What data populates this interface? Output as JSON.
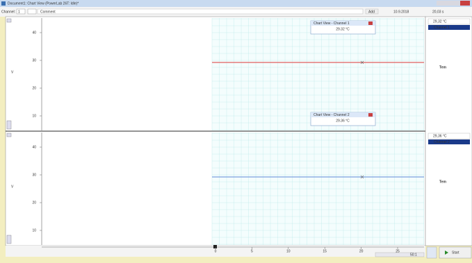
{
  "window": {
    "title": "Document1: Chart View (PowerLab 26T: Idle)*",
    "toolbar": {
      "channel_label": "Channel:",
      "channel_value": "1",
      "comment": "Comment",
      "add": "Add",
      "date": "10.9.2018",
      "time": "20,03 s"
    }
  },
  "panels": [
    {
      "y_ticks": [
        40,
        30,
        20,
        10
      ],
      "y_label": "V",
      "color": "#e06060",
      "popup": {
        "title": "Chart View - Channel 1",
        "value": "29.32 °C"
      },
      "readout": {
        "value": "29,32 °C",
        "channel": "Channel 1",
        "label": "Tem",
        "label_color": "#d01010"
      }
    },
    {
      "y_ticks": [
        40,
        30,
        20,
        10
      ],
      "y_label": "V",
      "color": "#7aa0e0",
      "popup": {
        "title": "Chart View - Channel 2",
        "value": "29.36 °C"
      },
      "readout": {
        "value": "29,36 °C",
        "channel": "Channel 2",
        "label": "Tem",
        "label_color": "#2060e0"
      }
    }
  ],
  "x_ticks": [
    0,
    5,
    10,
    15,
    20,
    25
  ],
  "controls": {
    "rate": "50:1",
    "start": "Start"
  }
}
